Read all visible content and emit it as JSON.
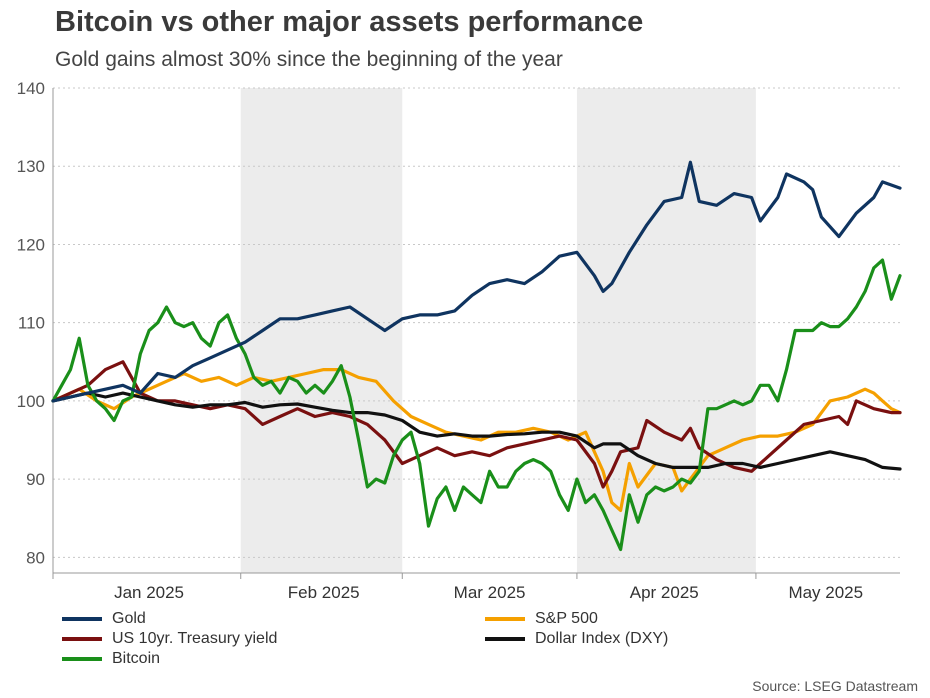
{
  "chart_data": {
    "type": "line",
    "title": "Bitcoin vs other major assets performance",
    "subtitle": "Gold gains almost 30% since the beginning of the year",
    "source": "Source: LSEG Datastream",
    "ylim": [
      78,
      140
    ],
    "yticks": [
      80,
      90,
      100,
      110,
      120,
      130,
      140
    ],
    "xlim": [
      0,
      97
    ],
    "month_ticks": [
      0,
      21.5,
      40,
      60,
      80.5
    ],
    "month_labels": [
      {
        "label": "Jan 2025",
        "pos": 11
      },
      {
        "label": "Feb 2025",
        "pos": 31
      },
      {
        "label": "Mar 2025",
        "pos": 50
      },
      {
        "label": "Apr 2025",
        "pos": 70
      },
      {
        "label": "May 2025",
        "pos": 88.5
      }
    ],
    "shaded_ranges": [
      [
        21.5,
        40
      ],
      [
        60,
        80.5
      ]
    ],
    "series": [
      {
        "name": "Gold",
        "color": "#0f3460",
        "points": [
          [
            0,
            100
          ],
          [
            2,
            100.5
          ],
          [
            4,
            101
          ],
          [
            6,
            101.5
          ],
          [
            8,
            102
          ],
          [
            10,
            101
          ],
          [
            12,
            103.5
          ],
          [
            14,
            103
          ],
          [
            16,
            104.5
          ],
          [
            18,
            105.5
          ],
          [
            20,
            106.5
          ],
          [
            22,
            107.5
          ],
          [
            24,
            109
          ],
          [
            26,
            110.5
          ],
          [
            28,
            110.5
          ],
          [
            30,
            111
          ],
          [
            32,
            111.5
          ],
          [
            34,
            112
          ],
          [
            36,
            110.5
          ],
          [
            38,
            109
          ],
          [
            40,
            110.5
          ],
          [
            42,
            111
          ],
          [
            44,
            111
          ],
          [
            46,
            111.5
          ],
          [
            48,
            113.5
          ],
          [
            50,
            115
          ],
          [
            52,
            115.5
          ],
          [
            54,
            115
          ],
          [
            56,
            116.5
          ],
          [
            58,
            118.5
          ],
          [
            60,
            119
          ],
          [
            62,
            116
          ],
          [
            63,
            114
          ],
          [
            64,
            115
          ],
          [
            66,
            119
          ],
          [
            68,
            122.5
          ],
          [
            70,
            125.5
          ],
          [
            72,
            126
          ],
          [
            73,
            130.5
          ],
          [
            74,
            125.5
          ],
          [
            76,
            125
          ],
          [
            78,
            126.5
          ],
          [
            80,
            126
          ],
          [
            81,
            123
          ],
          [
            83,
            126
          ],
          [
            84,
            129
          ],
          [
            86,
            128
          ],
          [
            87,
            127
          ],
          [
            88,
            123.5
          ],
          [
            90,
            121
          ],
          [
            92,
            124
          ],
          [
            94,
            126
          ],
          [
            95,
            128
          ],
          [
            97,
            127.2
          ]
        ]
      },
      {
        "name": "S&P 500",
        "color": "#f5a000",
        "points": [
          [
            0,
            100
          ],
          [
            3,
            101.5
          ],
          [
            5,
            100
          ],
          [
            7,
            99
          ],
          [
            9,
            100.5
          ],
          [
            11,
            101.5
          ],
          [
            13,
            102.5
          ],
          [
            15,
            103.5
          ],
          [
            17,
            102.5
          ],
          [
            19,
            103
          ],
          [
            21,
            102
          ],
          [
            23,
            103
          ],
          [
            25,
            102.5
          ],
          [
            27,
            103
          ],
          [
            29,
            103.5
          ],
          [
            31,
            104
          ],
          [
            33,
            104
          ],
          [
            35,
            103
          ],
          [
            37,
            102.5
          ],
          [
            39,
            100
          ],
          [
            41,
            98
          ],
          [
            43,
            97
          ],
          [
            45,
            96
          ],
          [
            47,
            95.5
          ],
          [
            49,
            95
          ],
          [
            51,
            96
          ],
          [
            53,
            96
          ],
          [
            55,
            96.5
          ],
          [
            57,
            96
          ],
          [
            59,
            95
          ],
          [
            61,
            96
          ],
          [
            63,
            91
          ],
          [
            64,
            87
          ],
          [
            65,
            86
          ],
          [
            66,
            92
          ],
          [
            67,
            89
          ],
          [
            69,
            92
          ],
          [
            71,
            91.5
          ],
          [
            72,
            88.5
          ],
          [
            73,
            90
          ],
          [
            75,
            93
          ],
          [
            77,
            94
          ],
          [
            79,
            95
          ],
          [
            81,
            95.5
          ],
          [
            83,
            95.5
          ],
          [
            85,
            96
          ],
          [
            87,
            97
          ],
          [
            89,
            100
          ],
          [
            91,
            100.5
          ],
          [
            93,
            101.5
          ],
          [
            94,
            101
          ],
          [
            95,
            100
          ],
          [
            96,
            99
          ],
          [
            97,
            98.5
          ]
        ]
      },
      {
        "name": "US 10yr. Treasury yield",
        "color": "#7a1010",
        "points": [
          [
            0,
            100
          ],
          [
            2,
            101
          ],
          [
            4,
            102
          ],
          [
            6,
            104
          ],
          [
            8,
            105
          ],
          [
            10,
            101
          ],
          [
            12,
            100
          ],
          [
            14,
            100
          ],
          [
            16,
            99.5
          ],
          [
            18,
            99
          ],
          [
            20,
            99.5
          ],
          [
            22,
            99
          ],
          [
            24,
            97
          ],
          [
            26,
            98
          ],
          [
            28,
            99
          ],
          [
            30,
            98
          ],
          [
            32,
            98.5
          ],
          [
            34,
            98
          ],
          [
            36,
            97
          ],
          [
            38,
            95
          ],
          [
            40,
            92
          ],
          [
            42,
            93
          ],
          [
            44,
            94
          ],
          [
            46,
            93
          ],
          [
            48,
            93.5
          ],
          [
            50,
            93
          ],
          [
            52,
            94
          ],
          [
            54,
            94.5
          ],
          [
            56,
            95
          ],
          [
            58,
            95.5
          ],
          [
            60,
            95
          ],
          [
            62,
            92
          ],
          [
            63,
            89
          ],
          [
            64,
            91
          ],
          [
            65,
            93.5
          ],
          [
            67,
            94
          ],
          [
            68,
            97.5
          ],
          [
            70,
            96
          ],
          [
            72,
            95
          ],
          [
            73,
            96.5
          ],
          [
            74,
            94
          ],
          [
            76,
            92.5
          ],
          [
            78,
            91.5
          ],
          [
            80,
            91
          ],
          [
            82,
            93
          ],
          [
            84,
            95
          ],
          [
            86,
            97
          ],
          [
            88,
            97.5
          ],
          [
            90,
            98
          ],
          [
            91,
            97
          ],
          [
            92,
            100
          ],
          [
            94,
            99
          ],
          [
            96,
            98.5
          ],
          [
            97,
            98.5
          ]
        ]
      },
      {
        "name": "Dollar Index (DXY)",
        "color": "#111111",
        "points": [
          [
            0,
            100
          ],
          [
            2,
            100.5
          ],
          [
            4,
            101
          ],
          [
            6,
            100.5
          ],
          [
            8,
            101
          ],
          [
            10,
            100.5
          ],
          [
            12,
            100
          ],
          [
            14,
            99.5
          ],
          [
            16,
            99.2
          ],
          [
            18,
            99.5
          ],
          [
            20,
            99.5
          ],
          [
            22,
            99.8
          ],
          [
            24,
            99.2
          ],
          [
            26,
            99.5
          ],
          [
            28,
            99.6
          ],
          [
            30,
            99.2
          ],
          [
            32,
            98.8
          ],
          [
            34,
            98.5
          ],
          [
            36,
            98.5
          ],
          [
            38,
            98.2
          ],
          [
            40,
            97.5
          ],
          [
            42,
            96
          ],
          [
            44,
            95.5
          ],
          [
            46,
            95.8
          ],
          [
            48,
            95.5
          ],
          [
            50,
            95.5
          ],
          [
            52,
            95.7
          ],
          [
            54,
            95.8
          ],
          [
            56,
            96
          ],
          [
            58,
            96
          ],
          [
            60,
            95.5
          ],
          [
            62,
            94
          ],
          [
            63,
            94.5
          ],
          [
            65,
            94.5
          ],
          [
            67,
            93
          ],
          [
            69,
            92
          ],
          [
            71,
            91.5
          ],
          [
            73,
            91.5
          ],
          [
            75,
            91.5
          ],
          [
            77,
            92
          ],
          [
            79,
            92
          ],
          [
            81,
            91.5
          ],
          [
            83,
            92
          ],
          [
            85,
            92.5
          ],
          [
            87,
            93
          ],
          [
            89,
            93.5
          ],
          [
            91,
            93
          ],
          [
            93,
            92.5
          ],
          [
            95,
            91.5
          ],
          [
            97,
            91.3
          ]
        ]
      },
      {
        "name": "Bitcoin",
        "color": "#1a8f1a",
        "points": [
          [
            0,
            100
          ],
          [
            1,
            102
          ],
          [
            2,
            104
          ],
          [
            3,
            108
          ],
          [
            4,
            102
          ],
          [
            5,
            100
          ],
          [
            6,
            99
          ],
          [
            7,
            97.5
          ],
          [
            8,
            100
          ],
          [
            9,
            100.5
          ],
          [
            10,
            106
          ],
          [
            11,
            109
          ],
          [
            12,
            110
          ],
          [
            13,
            112
          ],
          [
            14,
            110
          ],
          [
            15,
            109.5
          ],
          [
            16,
            110
          ],
          [
            17,
            108
          ],
          [
            18,
            107
          ],
          [
            19,
            110
          ],
          [
            20,
            111
          ],
          [
            21,
            108
          ],
          [
            22,
            106
          ],
          [
            23,
            103
          ],
          [
            24,
            102
          ],
          [
            25,
            102.5
          ],
          [
            26,
            101
          ],
          [
            27,
            103
          ],
          [
            28,
            102.5
          ],
          [
            29,
            101
          ],
          [
            30,
            102
          ],
          [
            31,
            101
          ],
          [
            32,
            102.5
          ],
          [
            33,
            104.5
          ],
          [
            34,
            100.5
          ],
          [
            35,
            95
          ],
          [
            36,
            89
          ],
          [
            37,
            90
          ],
          [
            38,
            89.5
          ],
          [
            39,
            93
          ],
          [
            40,
            95
          ],
          [
            41,
            96
          ],
          [
            42,
            92
          ],
          [
            43,
            84
          ],
          [
            44,
            87.5
          ],
          [
            45,
            89
          ],
          [
            46,
            86
          ],
          [
            47,
            89
          ],
          [
            48,
            88
          ],
          [
            49,
            87
          ],
          [
            50,
            91
          ],
          [
            51,
            89
          ],
          [
            52,
            89
          ],
          [
            53,
            91
          ],
          [
            54,
            92
          ],
          [
            55,
            92.5
          ],
          [
            56,
            92
          ],
          [
            57,
            91
          ],
          [
            58,
            88
          ],
          [
            59,
            86
          ],
          [
            60,
            90
          ],
          [
            61,
            87
          ],
          [
            62,
            88
          ],
          [
            63,
            86
          ],
          [
            64,
            83.5
          ],
          [
            65,
            81
          ],
          [
            66,
            88
          ],
          [
            67,
            84.5
          ],
          [
            68,
            88
          ],
          [
            69,
            89
          ],
          [
            70,
            88.5
          ],
          [
            71,
            89
          ],
          [
            72,
            90
          ],
          [
            73,
            89.5
          ],
          [
            74,
            91
          ],
          [
            75,
            99
          ],
          [
            76,
            99
          ],
          [
            77,
            99.5
          ],
          [
            78,
            100
          ],
          [
            79,
            99.5
          ],
          [
            80,
            100
          ],
          [
            81,
            102
          ],
          [
            82,
            102
          ],
          [
            83,
            100
          ],
          [
            84,
            104
          ],
          [
            85,
            109
          ],
          [
            86,
            109
          ],
          [
            87,
            109
          ],
          [
            88,
            110
          ],
          [
            89,
            109.5
          ],
          [
            90,
            109.5
          ],
          [
            91,
            110.5
          ],
          [
            92,
            112
          ],
          [
            93,
            114
          ],
          [
            94,
            117
          ],
          [
            95,
            118
          ],
          [
            96,
            113
          ],
          [
            97,
            116
          ]
        ]
      }
    ]
  }
}
